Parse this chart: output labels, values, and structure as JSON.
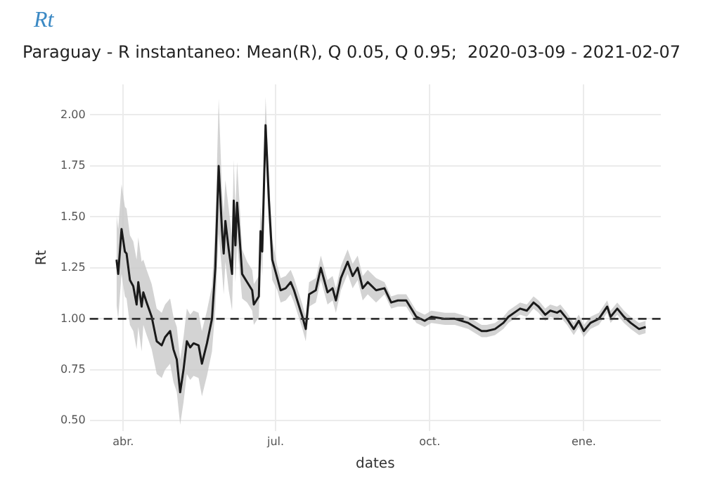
{
  "chart_data": {
    "type": "line",
    "title": "Rt",
    "subtitle": "Paraguay - R instantaneo: Mean(R), Q 0.05, Q 0.95;  2020-03-09 - 2021-02-07",
    "xlabel": "dates",
    "ylabel": "Rt",
    "x": [
      "2020-03-28",
      "2020-03-29",
      "2020-03-31",
      "2020-04-02",
      "2020-04-03",
      "2020-04-05",
      "2020-04-07",
      "2020-04-09",
      "2020-04-10",
      "2020-04-12",
      "2020-04-13",
      "2020-04-15",
      "2020-04-18",
      "2020-04-21",
      "2020-04-24",
      "2020-04-26",
      "2020-04-29",
      "2020-05-01",
      "2020-05-03",
      "2020-05-05",
      "2020-05-07",
      "2020-05-09",
      "2020-05-11",
      "2020-05-13",
      "2020-05-16",
      "2020-05-18",
      "2020-05-21",
      "2020-05-24",
      "2020-05-26",
      "2020-05-28",
      "2020-05-30",
      "2020-05-31",
      "2020-06-01",
      "2020-06-03",
      "2020-06-05",
      "2020-06-06",
      "2020-06-07",
      "2020-06-08",
      "2020-06-10",
      "2020-06-11",
      "2020-06-14",
      "2020-06-17",
      "2020-06-18",
      "2020-06-21",
      "2020-06-22",
      "2020-06-23",
      "2020-06-25",
      "2020-06-27",
      "2020-06-29",
      "2020-07-02",
      "2020-07-04",
      "2020-07-07",
      "2020-07-10",
      "2020-07-12",
      "2020-07-17",
      "2020-07-19",
      "2020-07-21",
      "2020-07-25",
      "2020-07-28",
      "2020-08-01",
      "2020-08-04",
      "2020-08-06",
      "2020-08-09",
      "2020-08-13",
      "2020-08-16",
      "2020-08-19",
      "2020-08-22",
      "2020-08-25",
      "2020-08-30",
      "2020-09-04",
      "2020-09-08",
      "2020-09-12",
      "2020-09-17",
      "2020-09-23",
      "2020-09-28",
      "2020-10-02",
      "2020-10-10",
      "2020-10-16",
      "2020-10-24",
      "2020-11-01",
      "2020-11-04",
      "2020-11-09",
      "2020-11-14",
      "2020-11-17",
      "2020-11-24",
      "2020-11-28",
      "2020-12-02",
      "2020-12-05",
      "2020-12-09",
      "2020-12-12",
      "2020-12-16",
      "2020-12-18",
      "2020-12-22",
      "2020-12-26",
      "2020-12-29",
      "2021-01-01",
      "2021-01-05",
      "2021-01-10",
      "2021-01-15",
      "2021-01-17",
      "2021-01-21",
      "2021-01-25",
      "2021-01-29",
      "2021-02-03",
      "2021-02-07"
    ],
    "series": [
      {
        "color": "#1a1a1a",
        "values": [
          1.29,
          1.22,
          1.44,
          1.33,
          1.32,
          1.19,
          1.16,
          1.07,
          1.18,
          1.06,
          1.13,
          1.08,
          1.01,
          0.89,
          0.87,
          0.91,
          0.94,
          0.85,
          0.8,
          0.64,
          0.75,
          0.89,
          0.86,
          0.88,
          0.87,
          0.78,
          0.88,
          1.0,
          1.25,
          1.75,
          1.43,
          1.32,
          1.48,
          1.34,
          1.22,
          1.58,
          1.36,
          1.57,
          1.34,
          1.22,
          1.18,
          1.14,
          1.07,
          1.11,
          1.43,
          1.33,
          1.95,
          1.58,
          1.29,
          1.2,
          1.14,
          1.15,
          1.18,
          1.14,
          1.01,
          0.95,
          1.12,
          1.14,
          1.25,
          1.13,
          1.15,
          1.09,
          1.2,
          1.28,
          1.21,
          1.25,
          1.15,
          1.18,
          1.14,
          1.15,
          1.08,
          1.09,
          1.09,
          1.01,
          0.99,
          1.01,
          1.0,
          1.0,
          0.98,
          0.94,
          0.94,
          0.95,
          0.98,
          1.01,
          1.05,
          1.04,
          1.08,
          1.06,
          1.02,
          1.04,
          1.03,
          1.04,
          1.0,
          0.95,
          0.99,
          0.94,
          0.98,
          1.0,
          1.06,
          1.01,
          1.05,
          1.01,
          0.98,
          0.95,
          0.96
        ],
        "lower": [
          1.07,
          1.0,
          1.22,
          1.11,
          1.1,
          0.97,
          0.94,
          0.85,
          0.96,
          0.84,
          0.97,
          0.92,
          0.85,
          0.73,
          0.71,
          0.75,
          0.78,
          0.69,
          0.64,
          0.48,
          0.59,
          0.73,
          0.7,
          0.72,
          0.71,
          0.62,
          0.72,
          0.84,
          1.05,
          1.42,
          1.23,
          1.12,
          1.28,
          1.14,
          1.04,
          1.38,
          1.18,
          1.37,
          1.19,
          1.1,
          1.08,
          1.04,
          0.97,
          1.01,
          1.31,
          1.21,
          1.81,
          1.46,
          1.19,
          1.14,
          1.08,
          1.09,
          1.12,
          1.08,
          0.95,
          0.89,
          1.06,
          1.08,
          1.19,
          1.07,
          1.09,
          1.03,
          1.14,
          1.22,
          1.15,
          1.19,
          1.09,
          1.12,
          1.08,
          1.12,
          1.05,
          1.06,
          1.06,
          0.98,
          0.96,
          0.98,
          0.97,
          0.97,
          0.95,
          0.91,
          0.91,
          0.92,
          0.95,
          0.98,
          1.02,
          1.01,
          1.05,
          1.03,
          0.99,
          1.01,
          1.0,
          1.01,
          0.97,
          0.92,
          0.96,
          0.91,
          0.95,
          0.97,
          1.03,
          0.98,
          1.02,
          0.98,
          0.95,
          0.92,
          0.93
        ],
        "upper": [
          1.51,
          1.44,
          1.66,
          1.55,
          1.54,
          1.41,
          1.38,
          1.29,
          1.4,
          1.28,
          1.29,
          1.24,
          1.17,
          1.05,
          1.03,
          1.07,
          1.1,
          1.01,
          0.96,
          0.8,
          0.91,
          1.05,
          1.02,
          1.04,
          1.03,
          0.94,
          1.04,
          1.16,
          1.45,
          2.08,
          1.63,
          1.52,
          1.68,
          1.54,
          1.4,
          1.78,
          1.54,
          1.77,
          1.49,
          1.34,
          1.28,
          1.24,
          1.17,
          1.21,
          1.55,
          1.45,
          2.09,
          1.7,
          1.39,
          1.26,
          1.2,
          1.21,
          1.24,
          1.2,
          1.07,
          1.01,
          1.18,
          1.2,
          1.31,
          1.19,
          1.21,
          1.15,
          1.26,
          1.34,
          1.27,
          1.31,
          1.21,
          1.24,
          1.2,
          1.18,
          1.11,
          1.12,
          1.12,
          1.04,
          1.02,
          1.04,
          1.03,
          1.03,
          1.01,
          0.97,
          0.97,
          0.98,
          1.01,
          1.04,
          1.08,
          1.07,
          1.11,
          1.09,
          1.05,
          1.07,
          1.06,
          1.07,
          1.03,
          0.98,
          1.02,
          0.97,
          1.01,
          1.03,
          1.09,
          1.04,
          1.08,
          1.04,
          1.01,
          0.98,
          0.99
        ]
      }
    ],
    "xlim": [
      "2020-03-12",
      "2021-02-16"
    ],
    "xticks": [
      {
        "value": "2020-04-01",
        "label": "abr."
      },
      {
        "value": "2020-07-01",
        "label": "jul."
      },
      {
        "value": "2020-10-01",
        "label": "oct."
      },
      {
        "value": "2021-01-01",
        "label": "ene."
      }
    ],
    "ylim": [
      0.45,
      2.15
    ],
    "yticks": [
      {
        "value": 0.5,
        "label": "0.50"
      },
      0.75,
      {
        "value": 1,
        "label": "1.00"
      },
      1.25,
      {
        "value": 1.5,
        "label": "1.50"
      },
      1.75,
      {
        "value": 2,
        "label": "2.00"
      }
    ],
    "ref_lines": [
      {
        "axis": "y",
        "value": 1,
        "line_style": "dashed",
        "color": "#333333"
      }
    ],
    "grid": true,
    "legend": false,
    "marker": "none",
    "line_style": "solid"
  }
}
